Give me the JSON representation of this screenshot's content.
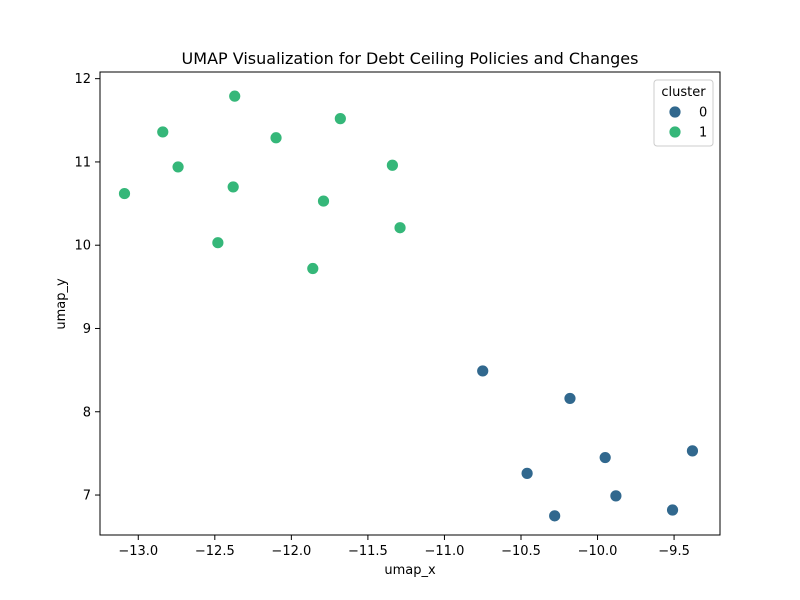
{
  "chart_data": {
    "type": "scatter",
    "title": "UMAP Visualization for Debt Ceiling Policies and Changes",
    "xlabel": "umap_x",
    "ylabel": "umap_y",
    "xlim": [
      -13.25,
      -9.2
    ],
    "ylim": [
      6.52,
      12.08
    ],
    "xticks": [
      -13.0,
      -12.5,
      -12.0,
      -11.5,
      -11.0,
      -10.5,
      -10.0,
      -9.5
    ],
    "xtick_labels": [
      "−13.0",
      "−12.5",
      "−12.0",
      "−11.5",
      "−11.0",
      "−10.5",
      "−10.0",
      "−9.5"
    ],
    "yticks": [
      7,
      8,
      9,
      10,
      11,
      12
    ],
    "ytick_labels": [
      "7",
      "8",
      "9",
      "10",
      "11",
      "12"
    ],
    "grid": false,
    "legend": {
      "title": "cluster",
      "placement": "top-right",
      "entries": [
        {
          "label": "0",
          "color": "#31688e"
        },
        {
          "label": "1",
          "color": "#35b779"
        }
      ]
    },
    "series": [
      {
        "name": "0",
        "color": "#31688e",
        "points": [
          {
            "x": -10.75,
            "y": 8.49
          },
          {
            "x": -10.18,
            "y": 8.16
          },
          {
            "x": -9.95,
            "y": 7.45
          },
          {
            "x": -9.38,
            "y": 7.53
          },
          {
            "x": -10.46,
            "y": 7.26
          },
          {
            "x": -9.88,
            "y": 6.99
          },
          {
            "x": -9.51,
            "y": 6.82
          },
          {
            "x": -10.28,
            "y": 6.75
          }
        ]
      },
      {
        "name": "1",
        "color": "#35b779",
        "points": [
          {
            "x": -12.37,
            "y": 11.79
          },
          {
            "x": -11.68,
            "y": 11.52
          },
          {
            "x": -12.84,
            "y": 11.36
          },
          {
            "x": -12.1,
            "y": 11.29
          },
          {
            "x": -12.74,
            "y": 10.94
          },
          {
            "x": -11.34,
            "y": 10.96
          },
          {
            "x": -12.38,
            "y": 10.7
          },
          {
            "x": -13.09,
            "y": 10.62
          },
          {
            "x": -11.79,
            "y": 10.53
          },
          {
            "x": -11.29,
            "y": 10.21
          },
          {
            "x": -12.48,
            "y": 10.03
          },
          {
            "x": -11.86,
            "y": 9.72
          }
        ]
      }
    ]
  }
}
